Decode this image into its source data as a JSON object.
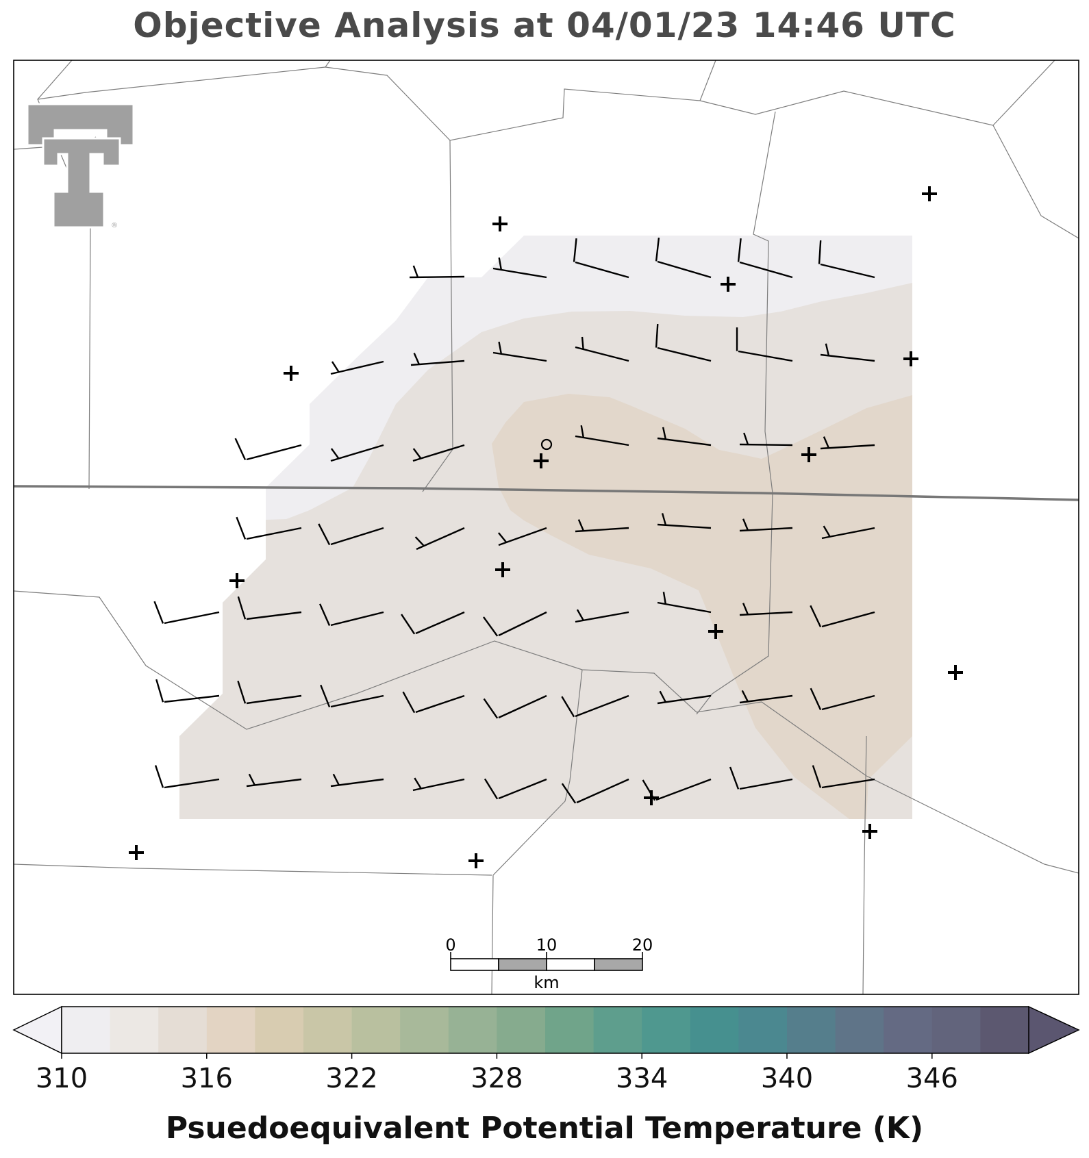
{
  "title": "Objective Analysis at 04/01/23 14:46 UTC",
  "colorbar": {
    "label": "Psuedoequivalent Potential Temperature (K)",
    "ticks": [
      "310",
      "316",
      "322",
      "328",
      "334",
      "340",
      "346"
    ],
    "min": 310,
    "max": 350,
    "step": 2,
    "colors": [
      "#efeef1",
      "#ece8e4",
      "#e5ddd5",
      "#e3d4c3",
      "#d8ccb1",
      "#c9c6a7",
      "#b9c09f",
      "#a8b99a",
      "#97b295",
      "#86ab8e",
      "#70a48a",
      "#5e9e8d",
      "#4f988f",
      "#46908f",
      "#4b8890",
      "#557e8c",
      "#5f7488",
      "#646a83",
      "#62647c",
      "#5c5870"
    ],
    "under_color": "#f2f1f5",
    "over_color": "#5b5670"
  },
  "scale_bar": {
    "ticks": [
      "0",
      "10",
      "20"
    ],
    "unit": "km"
  },
  "logo": {
    "name": "Texas Tech University",
    "mark": "®"
  },
  "analysis": {
    "field": "theta_e",
    "units": "K",
    "contour_levels": [
      {
        "range": "312-314",
        "color": "#efeef1"
      },
      {
        "range": "314-316",
        "color": "#e6e1dd"
      },
      {
        "range": "316-318",
        "color": "#e2d7cb"
      }
    ]
  },
  "wind_barbs": [
    {
      "row": 1,
      "col": 2,
      "speed": "5-10 kt",
      "dir": "E"
    },
    {
      "row": 1,
      "col": 3,
      "speed": "5-10 kt",
      "dir": "ESE"
    },
    {
      "row": 1,
      "col": 4,
      "speed": "10 kt",
      "dir": "ESE"
    },
    {
      "row": 1,
      "col": 5,
      "speed": "10 kt",
      "dir": "SE"
    },
    {
      "row": 1,
      "col": 6,
      "speed": "10 kt",
      "dir": "SE"
    },
    {
      "row": 1,
      "col": 7,
      "speed": "10 kt",
      "dir": "ESE"
    }
  ],
  "stations": [
    {
      "id": "stn-01"
    },
    {
      "id": "stn-02"
    },
    {
      "id": "stn-03"
    },
    {
      "id": "stn-04"
    },
    {
      "id": "stn-05"
    },
    {
      "id": "stn-06"
    },
    {
      "id": "stn-07"
    },
    {
      "id": "stn-08"
    },
    {
      "id": "stn-09"
    },
    {
      "id": "stn-10"
    },
    {
      "id": "stn-11"
    },
    {
      "id": "stn-12"
    },
    {
      "id": "stn-13"
    },
    {
      "id": "stn-14"
    },
    {
      "id": "stn-15"
    },
    {
      "id": "stn-16"
    }
  ],
  "calm_station": "o"
}
